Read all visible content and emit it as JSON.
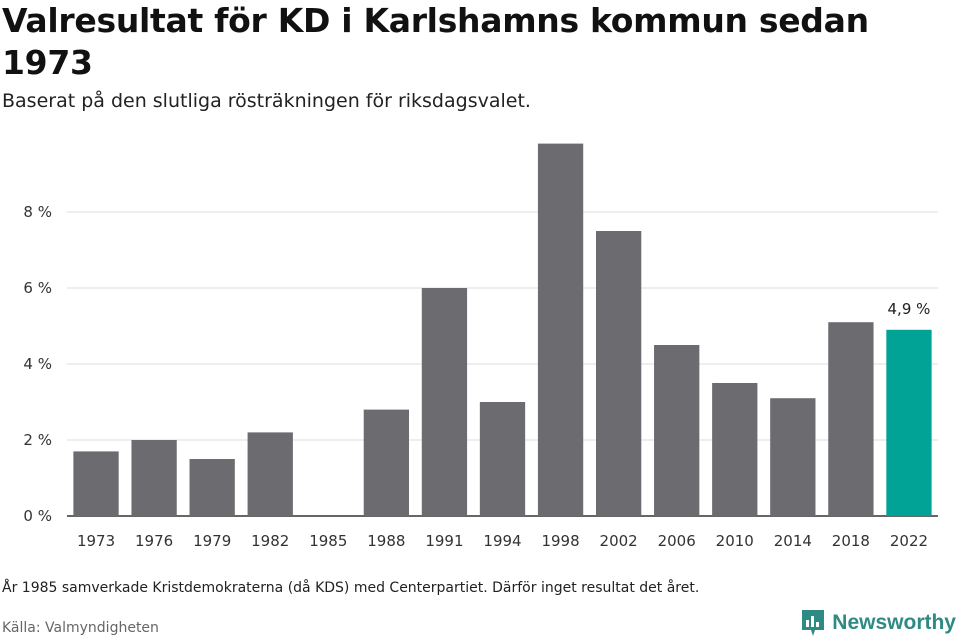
{
  "header": {
    "title": "Valresultat för KD i Karlshamns kommun sedan 1973",
    "subtitle": "Baserat på den slutliga rösträkningen för riksdagsvalet."
  },
  "footer": {
    "note": "År 1985 samverkade Kristdemokraterna (då KDS) med Centerpartiet. Därför inget resultat det året.",
    "source": "Källa: Valmyndigheten",
    "brand": "Newsworthy",
    "brand_icon": "newsworthy-logo-icon"
  },
  "colors": {
    "bar": "#6c6b70",
    "highlight": "#00a396",
    "grid": "#dcdcdc",
    "axis": "#333333",
    "brand": "#2e8b84"
  },
  "chart_data": {
    "type": "bar",
    "title": "Valresultat för KD i Karlshamns kommun sedan 1973",
    "subtitle": "Baserat på den slutliga rösträkningen för riksdagsvalet.",
    "categories": [
      "1973",
      "1976",
      "1979",
      "1982",
      "1985",
      "1988",
      "1991",
      "1994",
      "1998",
      "2002",
      "2006",
      "2010",
      "2014",
      "2018",
      "2022"
    ],
    "values": [
      1.7,
      2.0,
      1.5,
      2.2,
      null,
      2.8,
      6.0,
      3.0,
      9.8,
      7.5,
      4.5,
      3.5,
      3.1,
      5.1,
      4.9
    ],
    "unit": "%",
    "ylim": [
      0,
      10
    ],
    "yticks": [
      0,
      2,
      4,
      6,
      8
    ],
    "ytick_labels": [
      "0 %",
      "2 %",
      "4 %",
      "6 %",
      "8 %"
    ],
    "grid": true,
    "highlight_index": 14,
    "highlight_label": "4,9 %"
  }
}
